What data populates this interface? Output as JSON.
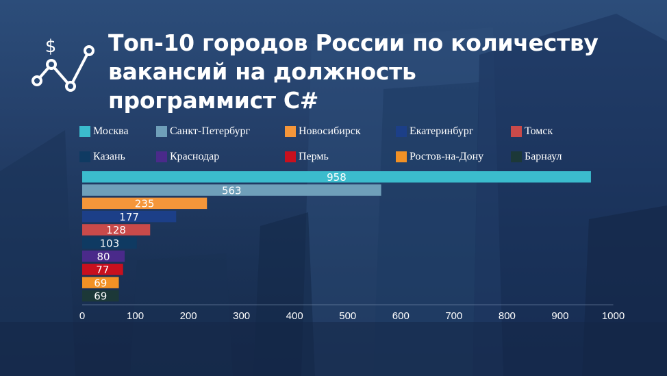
{
  "title": [
    "Топ-10 городов России по количеству",
    "вакансий на должность",
    "программист С#"
  ],
  "logo": {
    "icon": "dollar-growth-chart-icon"
  },
  "chart_data": {
    "type": "bar",
    "orientation": "horizontal",
    "title": "Топ-10 городов России по количеству вакансий на должность программист С#",
    "categories": [
      "Москва",
      "Санкт-Петербург",
      "Новосибирск",
      "Екатеринбург",
      "Томск",
      "Казань",
      "Краснодар",
      "Пермь",
      "Ростов-на-Дону",
      "Барнаул"
    ],
    "values": [
      958,
      563,
      235,
      177,
      128,
      103,
      80,
      77,
      69,
      69
    ],
    "colors": [
      "#3bbccd",
      "#6f9fb9",
      "#f5963a",
      "#1c3f88",
      "#c94a4a",
      "#0f3a62",
      "#4a2a8a",
      "#c8101e",
      "#f29125",
      "#1c3838"
    ],
    "xlim": [
      0,
      1000
    ],
    "xticks": [
      0,
      100,
      200,
      300,
      400,
      500,
      600,
      700,
      800,
      900,
      1000
    ],
    "legend_placement": "top",
    "grid": false
  }
}
